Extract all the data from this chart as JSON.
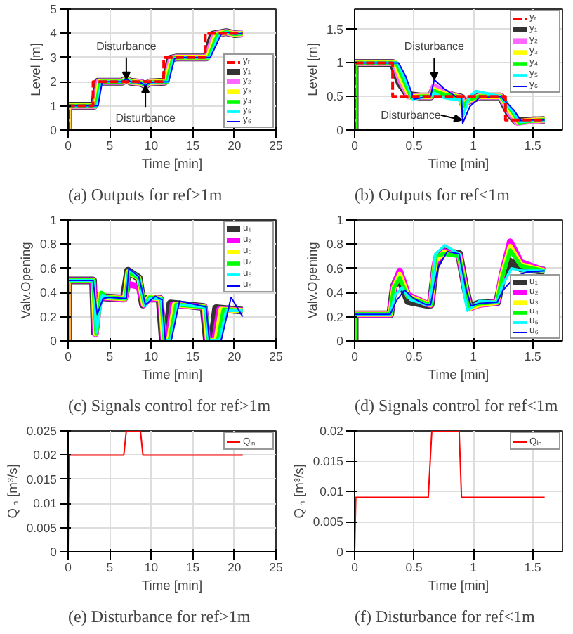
{
  "chart_data": [
    {
      "type": "line",
      "title": "(a) Outputs for ref>1m",
      "xlabel": "Time [min]",
      "ylabel": "Level [m]",
      "xlim": [
        0,
        25
      ],
      "xticks": [
        0,
        5,
        10,
        15,
        20,
        25
      ],
      "ylim": [
        0,
        5
      ],
      "yticks": [
        0,
        1,
        2,
        3,
        4,
        5
      ],
      "grid": true,
      "legend": "bottom right",
      "annotations": [
        {
          "text": "Disturbance",
          "x": 7,
          "y": 2.1
        },
        {
          "text": "Disturbance",
          "x": 9.3,
          "y": 1.85
        }
      ],
      "series": [
        {
          "name": "yᵣ",
          "color": "#ff0000",
          "line_style": "dashed",
          "x": [
            0,
            0,
            3,
            3,
            11.5,
            11.5,
            16.5,
            16.5,
            21
          ],
          "values": [
            0,
            1,
            1,
            2,
            2,
            3,
            3,
            4,
            4
          ]
        },
        {
          "name": "y₁",
          "color": "#333333",
          "x": [
            0,
            0,
            3.1,
            3.6,
            6.5,
            7,
            7.5,
            8.8,
            9.3,
            9.8,
            11.6,
            12.3,
            13,
            16.6,
            17.4,
            19,
            20,
            21
          ],
          "values": [
            0,
            1,
            1,
            2,
            2,
            2.1,
            2,
            1.95,
            1.85,
            1.97,
            2,
            2.95,
            3,
            3,
            3.95,
            4.05,
            3.97,
            4
          ]
        },
        {
          "name": "y₂",
          "color": "#ff66ff",
          "x": [
            0,
            0,
            3.2,
            3.7,
            6.5,
            7,
            7.5,
            8.8,
            9.3,
            9.8,
            11.7,
            12.4,
            13,
            16.7,
            17.6,
            19,
            20,
            21
          ],
          "values": [
            0,
            1,
            1,
            2,
            2,
            2.1,
            2,
            1.95,
            1.85,
            1.97,
            2,
            2.95,
            3,
            3,
            3.95,
            4.05,
            3.97,
            4
          ]
        },
        {
          "name": "y₃",
          "color": "#ffff00",
          "x": [
            0,
            0,
            3.3,
            3.8,
            6.5,
            7,
            7.5,
            8.8,
            9.3,
            9.8,
            11.8,
            12.5,
            13,
            16.8,
            17.8,
            19,
            20,
            21
          ],
          "values": [
            0,
            1,
            1,
            2,
            2,
            2.1,
            2,
            1.95,
            1.85,
            1.97,
            2,
            2.95,
            3,
            3,
            3.95,
            4.05,
            3.97,
            4
          ]
        },
        {
          "name": "y₄",
          "color": "#00ff00",
          "x": [
            0,
            0,
            3.4,
            3.9,
            6.5,
            7,
            7.5,
            8.8,
            9.3,
            9.8,
            11.9,
            12.6,
            13,
            16.9,
            18,
            19,
            20,
            21
          ],
          "values": [
            0,
            1,
            1,
            2,
            2,
            2.1,
            2,
            1.95,
            1.85,
            1.97,
            2,
            2.95,
            3,
            3,
            3.95,
            4.05,
            3.97,
            4
          ]
        },
        {
          "name": "y₅",
          "color": "#00ffff",
          "x": [
            0,
            0,
            3.5,
            4,
            6.5,
            7,
            7.5,
            8.8,
            9.3,
            9.8,
            12,
            12.7,
            13.1,
            17,
            18.2,
            19,
            20,
            21
          ],
          "values": [
            0,
            1,
            1,
            2,
            2,
            2.1,
            2,
            1.95,
            1.85,
            1.97,
            2,
            2.95,
            3,
            3,
            3.95,
            4.05,
            3.97,
            4
          ]
        },
        {
          "name": "y₆",
          "color": "#0000ff",
          "x": [
            0,
            0,
            3.6,
            4.1,
            6.5,
            7,
            7.5,
            8.8,
            9.3,
            9.8,
            12.1,
            12.8,
            13.2,
            17.1,
            18.4,
            19.2,
            20,
            21
          ],
          "values": [
            0,
            1,
            1,
            2,
            2,
            2.12,
            2,
            1.95,
            1.83,
            1.97,
            2,
            2.95,
            3,
            3,
            3.95,
            4.05,
            3.97,
            4
          ]
        }
      ]
    },
    {
      "type": "line",
      "title": "(b) Outputs for ref<1m",
      "xlabel": "Time [min]",
      "ylabel": "Level [m]",
      "xlim": [
        0,
        1.75
      ],
      "xticks": [
        0,
        0.5,
        1,
        1.5
      ],
      "ylim": [
        0,
        1.8
      ],
      "yticks": [
        0,
        0.5,
        1,
        1.5
      ],
      "grid": true,
      "legend": "top right",
      "annotations": [
        {
          "text": "Disturbance",
          "x": 0.67,
          "y": 0.75
        },
        {
          "text": "Disturbance",
          "x": 0.9,
          "y": 0.15
        }
      ],
      "series": [
        {
          "name": "yᵣ",
          "color": "#ff0000",
          "line_style": "dashed",
          "x": [
            0,
            0,
            0.32,
            0.32,
            1.27,
            1.27,
            1.6
          ],
          "values": [
            0,
            1,
            1,
            0.5,
            0.5,
            0.15,
            0.15
          ]
        },
        {
          "name": "y₁",
          "color": "#333333",
          "x": [
            0,
            0,
            0.32,
            0.38,
            0.45,
            0.55,
            0.64,
            0.67,
            0.75,
            0.85,
            0.9,
            0.91,
            0.97,
            1.05,
            1.23,
            1.3,
            1.36,
            1.45,
            1.6
          ],
          "values": [
            0,
            1,
            1,
            0.7,
            0.52,
            0.5,
            0.5,
            0.62,
            0.55,
            0.5,
            0.48,
            0.4,
            0.44,
            0.5,
            0.5,
            0.25,
            0.13,
            0.14,
            0.15
          ]
        },
        {
          "name": "y₂",
          "color": "#ff66ff",
          "x": [
            0,
            0,
            0.33,
            0.39,
            0.46,
            0.55,
            0.64,
            0.67,
            0.75,
            0.85,
            0.9,
            0.91,
            0.97,
            1.05,
            1.23,
            1.31,
            1.37,
            1.45,
            1.6
          ],
          "values": [
            0,
            1,
            1,
            0.72,
            0.5,
            0.5,
            0.5,
            0.65,
            0.56,
            0.5,
            0.48,
            0.38,
            0.44,
            0.5,
            0.5,
            0.25,
            0.11,
            0.13,
            0.15
          ]
        },
        {
          "name": "y₃",
          "color": "#ffff00",
          "x": [
            0,
            0,
            0.34,
            0.4,
            0.47,
            0.55,
            0.64,
            0.67,
            0.75,
            0.85,
            0.9,
            0.91,
            0.97,
            1.05,
            1.23,
            1.32,
            1.38,
            1.45,
            1.6
          ],
          "values": [
            0,
            1,
            1,
            0.74,
            0.49,
            0.5,
            0.5,
            0.6,
            0.54,
            0.5,
            0.48,
            0.36,
            0.45,
            0.5,
            0.5,
            0.26,
            0.12,
            0.14,
            0.15
          ]
        },
        {
          "name": "y₄",
          "color": "#00ff00",
          "x": [
            0,
            0,
            0.35,
            0.41,
            0.48,
            0.55,
            0.64,
            0.67,
            0.75,
            0.85,
            0.9,
            0.91,
            0.97,
            1.05,
            1.23,
            1.33,
            1.39,
            1.45,
            1.6
          ],
          "values": [
            0,
            1,
            1,
            0.76,
            0.48,
            0.5,
            0.5,
            0.58,
            0.53,
            0.5,
            0.48,
            0.35,
            0.46,
            0.5,
            0.5,
            0.27,
            0.1,
            0.13,
            0.15
          ]
        },
        {
          "name": "y₅",
          "color": "#00ffff",
          "x": [
            0,
            0,
            0.36,
            0.42,
            0.49,
            0.55,
            0.64,
            0.67,
            0.75,
            0.85,
            0.9,
            0.91,
            0.97,
            1.02,
            1.23,
            1.33,
            1.39,
            1.45,
            1.6
          ],
          "values": [
            0,
            1,
            1,
            0.78,
            0.46,
            0.48,
            0.5,
            0.55,
            0.48,
            0.45,
            0.47,
            0.2,
            0.5,
            0.58,
            0.5,
            0.28,
            0.12,
            0.13,
            0.15
          ]
        },
        {
          "name": "y₆",
          "color": "#0000ff",
          "x": [
            0,
            0,
            0.37,
            0.43,
            0.5,
            0.56,
            0.64,
            0.67,
            0.75,
            0.85,
            0.9,
            0.91,
            0.97,
            1.05,
            1.23,
            1.34,
            1.4,
            1.45,
            1.6
          ],
          "values": [
            0,
            1,
            1,
            0.8,
            0.46,
            0.48,
            0.5,
            0.75,
            0.62,
            0.5,
            0.48,
            0.1,
            0.35,
            0.48,
            0.5,
            0.3,
            0.14,
            0.15,
            0.15
          ]
        }
      ]
    },
    {
      "type": "line",
      "title": "(c) Signals control for ref>1m",
      "xlabel": "Time [min]",
      "ylabel": "Valv.Opening",
      "xlim": [
        0,
        25
      ],
      "xticks": [
        0,
        5,
        10,
        15,
        20,
        25
      ],
      "ylim": [
        0,
        1
      ],
      "yticks": [
        0,
        0.2,
        0.4,
        0.6,
        0.8,
        1
      ],
      "grid": true,
      "legend": "top right",
      "series": [
        {
          "name": "u₁",
          "color": "#333333",
          "x": [
            0,
            0,
            3,
            3.2,
            3.6,
            4.2,
            6.7,
            7.2,
            8.5,
            9,
            9.5,
            11,
            11.4,
            11.8,
            12.3,
            16.3,
            16.7,
            17.3,
            17.8,
            21
          ],
          "values": [
            0,
            0.5,
            0.5,
            0.07,
            0.37,
            0.36,
            0.35,
            0.58,
            0.52,
            0.3,
            0.35,
            0.35,
            0,
            0,
            0.31,
            0.28,
            0,
            0,
            0.27,
            0.25
          ]
        },
        {
          "name": "u₂",
          "color": "#ff00ff",
          "x": [
            0,
            0,
            3,
            3.3,
            3.8,
            4.4,
            6.8,
            7.2,
            8.5,
            9.1,
            9.7,
            11.1,
            11.5,
            12,
            12.6,
            16.4,
            16.8,
            17.6,
            18.2,
            21
          ],
          "values": [
            0,
            0.5,
            0.5,
            0.06,
            0.38,
            0.36,
            0.35,
            0.47,
            0.45,
            0.3,
            0.35,
            0.35,
            0,
            0,
            0.3,
            0.28,
            0,
            0,
            0.26,
            0.25
          ]
        },
        {
          "name": "u₃",
          "color": "#ffff00",
          "x": [
            0,
            0,
            3,
            3.3,
            3.9,
            4.5,
            6.8,
            7.2,
            8.5,
            9.1,
            9.7,
            11.1,
            11.5,
            12.1,
            12.8,
            16.4,
            16.8,
            17.8,
            18.4,
            21
          ],
          "values": [
            0,
            0.5,
            0.5,
            0.06,
            0.39,
            0.36,
            0.35,
            0.57,
            0.52,
            0.3,
            0.36,
            0.35,
            0,
            0,
            0.3,
            0.28,
            0,
            0,
            0.26,
            0.25
          ]
        },
        {
          "name": "u₄",
          "color": "#00ff00",
          "x": [
            0,
            0,
            3,
            3.4,
            4,
            4.6,
            6.9,
            7.3,
            8.5,
            9.2,
            9.8,
            11.2,
            11.6,
            12.2,
            13,
            16.5,
            16.9,
            18,
            18.7,
            21
          ],
          "values": [
            0,
            0.5,
            0.5,
            0.06,
            0.4,
            0.36,
            0.35,
            0.57,
            0.52,
            0.3,
            0.36,
            0.35,
            0,
            0,
            0.3,
            0.28,
            0,
            0,
            0.26,
            0.25
          ]
        },
        {
          "name": "u₅",
          "color": "#00ffff",
          "x": [
            0,
            0,
            3,
            3.4,
            4.1,
            4.7,
            6.9,
            7.3,
            8.5,
            9.2,
            9.8,
            11.2,
            11.6,
            12.3,
            13.2,
            16.5,
            16.9,
            18.2,
            19,
            21
          ],
          "values": [
            0,
            0.5,
            0.5,
            0.07,
            0.38,
            0.36,
            0.35,
            0.59,
            0.53,
            0.29,
            0.35,
            0.35,
            0,
            0,
            0.3,
            0.28,
            0,
            0,
            0.25,
            0.25
          ]
        },
        {
          "name": "u₆",
          "color": "#0000ff",
          "x": [
            0,
            0,
            3,
            3.5,
            4.2,
            4.8,
            7,
            7.3,
            8.5,
            9.3,
            10.5,
            11.3,
            11.7,
            12.4,
            13.4,
            16.6,
            17,
            18.4,
            19.6,
            21
          ],
          "values": [
            0,
            0.5,
            0.5,
            0.22,
            0.35,
            0.36,
            0.35,
            0.6,
            0.53,
            0.3,
            0.37,
            0.34,
            0,
            0,
            0.33,
            0.28,
            0,
            0,
            0.36,
            0.2
          ]
        }
      ]
    },
    {
      "type": "line",
      "title": "(d) Signals control for ref<1m",
      "xlabel": "Time [min]",
      "ylabel": "Valv.Opening",
      "xlim": [
        0,
        1.75
      ],
      "xticks": [
        0,
        0.5,
        1,
        1.5
      ],
      "ylim": [
        0,
        1
      ],
      "yticks": [
        0,
        0.2,
        0.4,
        0.6,
        0.8,
        1
      ],
      "grid": true,
      "legend": "bottom right",
      "series": [
        {
          "name": "u₁",
          "color": "#333333",
          "x": [
            0,
            0,
            0.3,
            0.33,
            0.37,
            0.45,
            0.6,
            0.64,
            0.68,
            0.75,
            0.88,
            0.93,
            0.97,
            1.05,
            1.2,
            1.24,
            1.3,
            1.4,
            1.6
          ],
          "values": [
            0,
            0.22,
            0.22,
            0.45,
            0.54,
            0.33,
            0.3,
            0.3,
            0.62,
            0.74,
            0.72,
            0.45,
            0.28,
            0.31,
            0.32,
            0.5,
            0.66,
            0.6,
            0.58
          ]
        },
        {
          "name": "u₂",
          "color": "#ff00ff",
          "x": [
            0,
            0,
            0.3,
            0.33,
            0.38,
            0.45,
            0.6,
            0.64,
            0.68,
            0.75,
            0.88,
            0.93,
            0.97,
            1.05,
            1.2,
            1.24,
            1.31,
            1.4,
            1.6
          ],
          "values": [
            0,
            0.22,
            0.22,
            0.45,
            0.58,
            0.38,
            0.31,
            0.3,
            0.65,
            0.74,
            0.71,
            0.45,
            0.27,
            0.3,
            0.32,
            0.55,
            0.82,
            0.65,
            0.58
          ]
        },
        {
          "name": "u₃",
          "color": "#ffff00",
          "x": [
            0,
            0,
            0.3,
            0.33,
            0.38,
            0.45,
            0.6,
            0.64,
            0.68,
            0.75,
            0.88,
            0.93,
            0.97,
            1.05,
            1.2,
            1.24,
            1.31,
            1.4,
            1.6
          ],
          "values": [
            0,
            0.22,
            0.22,
            0.44,
            0.55,
            0.37,
            0.31,
            0.3,
            0.66,
            0.73,
            0.71,
            0.45,
            0.27,
            0.3,
            0.32,
            0.54,
            0.78,
            0.63,
            0.58
          ]
        },
        {
          "name": "u₄",
          "color": "#00ff00",
          "x": [
            0,
            0,
            0.3,
            0.33,
            0.38,
            0.45,
            0.6,
            0.64,
            0.68,
            0.75,
            0.88,
            0.93,
            0.97,
            1.05,
            1.2,
            1.24,
            1.31,
            1.4,
            1.6
          ],
          "values": [
            0,
            0.22,
            0.22,
            0.44,
            0.52,
            0.36,
            0.31,
            0.3,
            0.7,
            0.72,
            0.7,
            0.45,
            0.28,
            0.31,
            0.32,
            0.52,
            0.75,
            0.62,
            0.58
          ]
        },
        {
          "name": "u₅",
          "color": "#00ffff",
          "x": [
            0,
            0,
            0.3,
            0.34,
            0.4,
            0.47,
            0.6,
            0.64,
            0.68,
            0.76,
            0.88,
            0.92,
            0.95,
            1.05,
            1.2,
            1.24,
            1.32,
            1.42,
            1.6
          ],
          "values": [
            0,
            0.22,
            0.22,
            0.38,
            0.44,
            0.34,
            0.3,
            0.3,
            0.72,
            0.79,
            0.72,
            0.4,
            0.25,
            0.33,
            0.32,
            0.45,
            0.6,
            0.58,
            0.58
          ]
        },
        {
          "name": "u₆",
          "color": "#0000ff",
          "x": [
            0,
            0,
            0.3,
            0.35,
            0.42,
            0.5,
            0.6,
            0.64,
            0.7,
            0.78,
            0.88,
            0.94,
            0.98,
            1.05,
            1.2,
            1.25,
            1.35,
            1.45,
            1.6
          ],
          "values": [
            0,
            0.22,
            0.22,
            0.33,
            0.42,
            0.35,
            0.3,
            0.3,
            0.6,
            0.74,
            0.72,
            0.42,
            0.29,
            0.31,
            0.32,
            0.42,
            0.53,
            0.57,
            0.58
          ]
        }
      ]
    },
    {
      "type": "line",
      "title": "(e) Disturbance for ref>1m",
      "xlabel": "Time [min]",
      "ylabel": "Qᵢₙ [m³/s]",
      "xlim": [
        0,
        25
      ],
      "xticks": [
        0,
        5,
        10,
        15,
        20,
        25
      ],
      "ylim": [
        0,
        0.025
      ],
      "yticks": [
        0,
        0.005,
        0.01,
        0.015,
        0.02,
        0.025
      ],
      "grid": true,
      "legend": "top right",
      "series": [
        {
          "name": "Qᵢₙ",
          "color": "#ff0000",
          "x": [
            0,
            0.1,
            6.7,
            7,
            8.7,
            9,
            21
          ],
          "values": [
            0,
            0.02,
            0.02,
            0.025,
            0.025,
            0.02,
            0.02
          ]
        }
      ]
    },
    {
      "type": "line",
      "title": "(f) Disturbance for ref<1m",
      "xlabel": "Time [min]",
      "ylabel": "Qᵢₙ [m³/s]",
      "xlim": [
        0,
        1.75
      ],
      "xticks": [
        0,
        0.5,
        1,
        1.5
      ],
      "ylim": [
        0,
        0.02
      ],
      "yticks": [
        0,
        0.005,
        0.01,
        0.015,
        0.02
      ],
      "grid": true,
      "legend": "top right",
      "series": [
        {
          "name": "Qᵢₙ",
          "color": "#ff0000",
          "x": [
            0,
            0.01,
            0.62,
            0.65,
            0.88,
            0.9,
            1.6
          ],
          "values": [
            0,
            0.009,
            0.009,
            0.02,
            0.02,
            0.009,
            0.009
          ]
        }
      ]
    }
  ]
}
